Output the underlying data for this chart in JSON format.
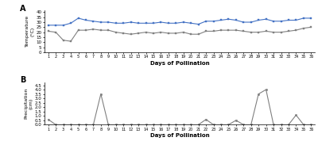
{
  "days": [
    1,
    2,
    3,
    4,
    5,
    6,
    7,
    8,
    9,
    10,
    11,
    12,
    13,
    14,
    15,
    16,
    17,
    18,
    19,
    20,
    21,
    22,
    23,
    24,
    25,
    26,
    27,
    28,
    29,
    30,
    31,
    32,
    33,
    34,
    35,
    36
  ],
  "temp_high": [
    27,
    27,
    27,
    29,
    34,
    32,
    31,
    30,
    30,
    29,
    29,
    30,
    29,
    29,
    29,
    30,
    29,
    29,
    30,
    29,
    28,
    31,
    31,
    32,
    33,
    32,
    30,
    30,
    32,
    33,
    31,
    31,
    32,
    32,
    34,
    34
  ],
  "temp_low": [
    21,
    20,
    12,
    11,
    22,
    22,
    23,
    22,
    22,
    20,
    19,
    18,
    19,
    20,
    19,
    20,
    19,
    19,
    20,
    18,
    18,
    21,
    21,
    22,
    22,
    22,
    21,
    20,
    20,
    21,
    20,
    20,
    21,
    22,
    24,
    25
  ],
  "precip": [
    0.6,
    0.0,
    0.0,
    0.0,
    0.0,
    0.0,
    0.0,
    3.5,
    0.0,
    0.0,
    0.0,
    0.0,
    0.0,
    0.0,
    0.0,
    0.0,
    0.0,
    0.0,
    0.0,
    0.0,
    0.0,
    0.6,
    0.0,
    0.0,
    0.0,
    0.5,
    0.0,
    0.0,
    3.5,
    4.0,
    0.0,
    0.0,
    0.0,
    1.1,
    0.0,
    0.0
  ],
  "temp_high_color": "#4472c4",
  "temp_low_color": "#808080",
  "precip_color": "#808080",
  "temp_ylabel": "Temperature\n(°C)",
  "precip_ylabel": "Precipitation\n(cm)",
  "xlabel": "Days of Pollination",
  "temp_yticks": [
    0,
    5,
    10,
    15,
    20,
    25,
    30,
    35,
    40
  ],
  "temp_ylim": [
    0,
    42
  ],
  "precip_yticks": [
    0.0,
    0.5,
    1.0,
    1.5,
    2.0,
    2.5,
    3.0,
    3.5,
    4.0,
    4.5
  ],
  "precip_ylim": [
    0,
    4.8
  ],
  "label_A": "A",
  "label_B": "B"
}
